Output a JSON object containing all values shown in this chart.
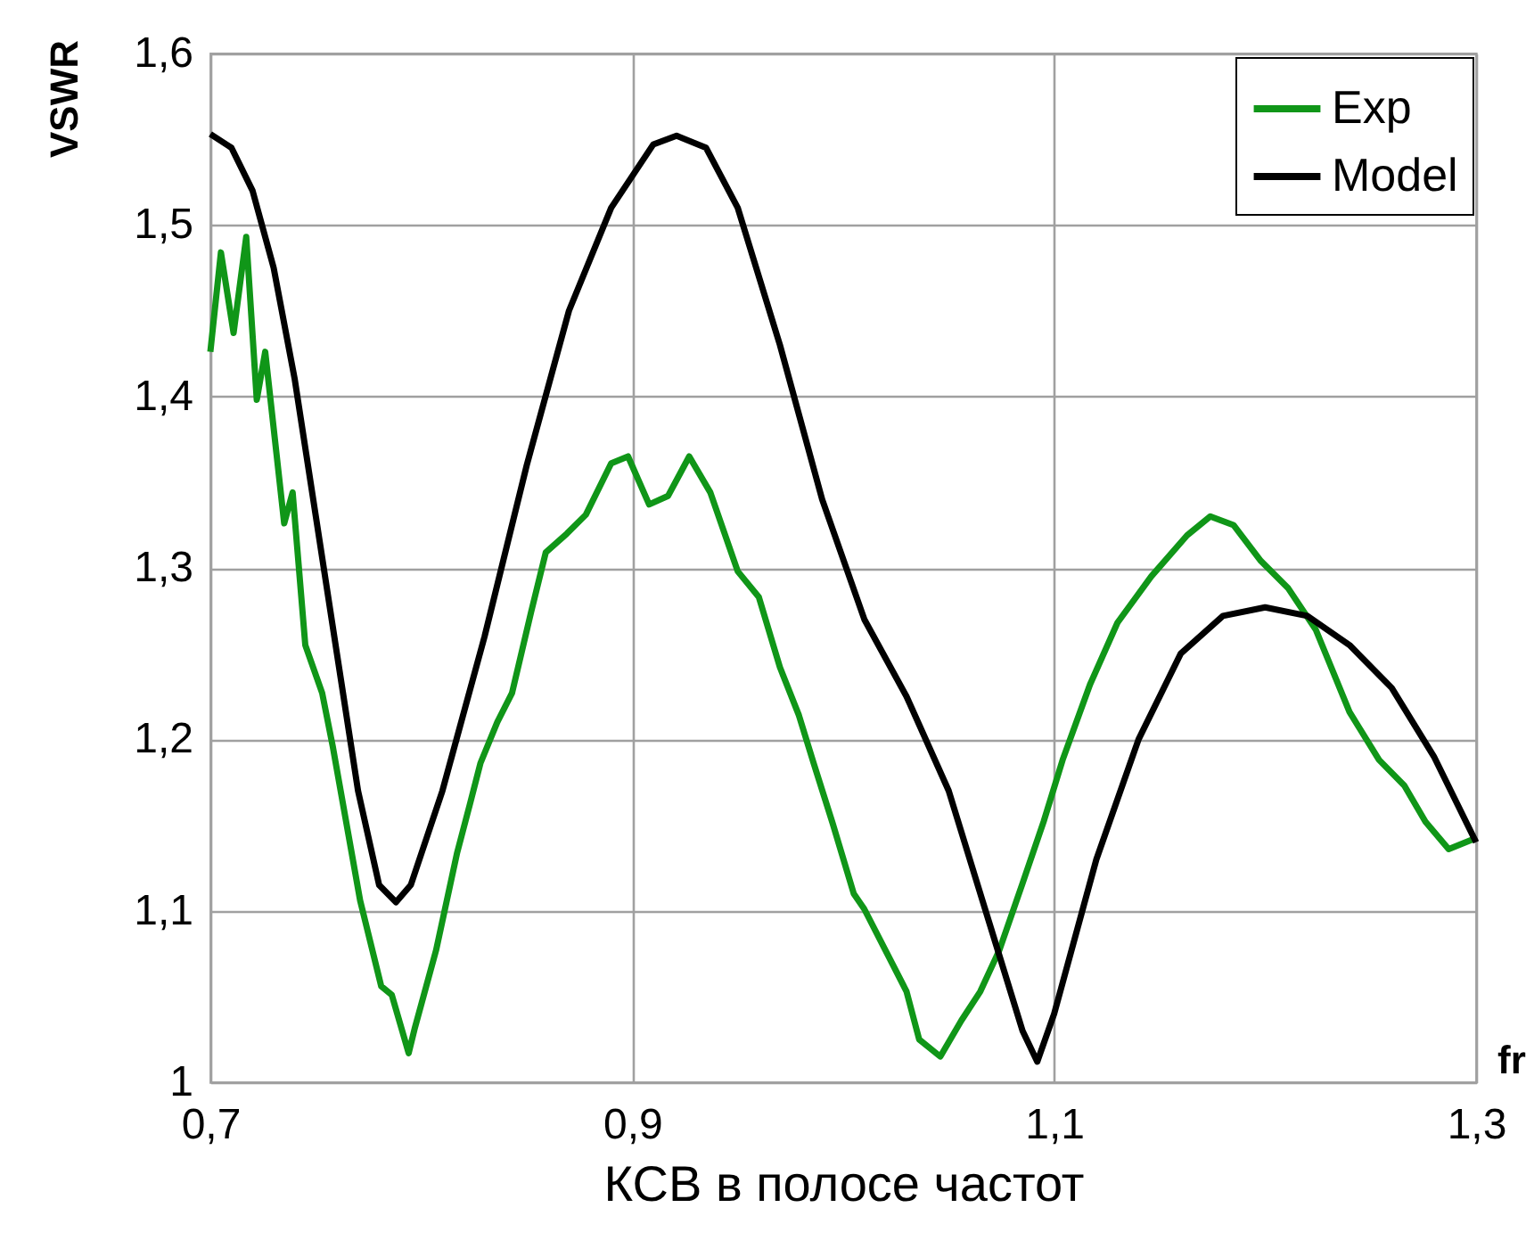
{
  "chart_data": {
    "type": "line",
    "xlabel": "КСВ в полосе частот",
    "ylabel": "VSWR",
    "annotations": [
      "fr"
    ],
    "xlim": [
      0.7,
      1.3
    ],
    "xticks": [
      {
        "value": 0.7,
        "label": "0,7"
      },
      {
        "value": 0.9,
        "label": "0,9"
      },
      {
        "value": 1.1,
        "label": "1,1"
      },
      {
        "value": 1.3,
        "label": "1,3"
      }
    ],
    "ylim": [
      1,
      1.6
    ],
    "yticks": [
      1,
      {
        "value": 1.1,
        "label": "1,1"
      },
      {
        "value": 1.2,
        "label": "1,2"
      },
      {
        "value": 1.3,
        "label": "1,3"
      },
      {
        "value": 1.4,
        "label": "1,4"
      },
      {
        "value": 1.5,
        "label": "1,5"
      },
      {
        "value": 1.6,
        "label": "1,6"
      }
    ],
    "grid": true,
    "legend": "top right",
    "marker": "none",
    "line_style": "solid",
    "series": [
      {
        "name": "Exp",
        "color": "#109618",
        "x": [
          0.7,
          0.705,
          0.711,
          0.717,
          0.722,
          0.726,
          0.735,
          0.739,
          0.745,
          0.753,
          0.758,
          0.771,
          0.781,
          0.786,
          0.794,
          0.797,
          0.807,
          0.817,
          0.823,
          0.828,
          0.836,
          0.843,
          0.852,
          0.859,
          0.869,
          0.878,
          0.89,
          0.898,
          0.908,
          0.917,
          0.927,
          0.937,
          0.95,
          0.96,
          0.97,
          0.979,
          0.986,
          0.995,
          1.005,
          1.01,
          1.02,
          1.03,
          1.036,
          1.046,
          1.056,
          1.065,
          1.074,
          1.085,
          1.095,
          1.104,
          1.117,
          1.13,
          1.146,
          1.163,
          1.174,
          1.185,
          1.198,
          1.211,
          1.224,
          1.24,
          1.254,
          1.266,
          1.276,
          1.287,
          1.299
        ],
        "values": [
          1.426,
          1.484,
          1.437,
          1.493,
          1.398,
          1.426,
          1.326,
          1.344,
          1.255,
          1.227,
          1.196,
          1.106,
          1.056,
          1.051,
          1.017,
          1.032,
          1.077,
          1.134,
          1.162,
          1.186,
          1.21,
          1.227,
          1.274,
          1.309,
          1.32,
          1.331,
          1.361,
          1.365,
          1.337,
          1.342,
          1.365,
          1.344,
          1.298,
          1.283,
          1.242,
          1.214,
          1.186,
          1.151,
          1.11,
          1.101,
          1.077,
          1.053,
          1.025,
          1.015,
          1.036,
          1.053,
          1.077,
          1.116,
          1.152,
          1.188,
          1.232,
          1.268,
          1.295,
          1.319,
          1.33,
          1.325,
          1.304,
          1.288,
          1.264,
          1.216,
          1.188,
          1.173,
          1.152,
          1.136,
          1.142
        ]
      },
      {
        "name": "Model",
        "color": "#000000",
        "x": [
          0.7,
          0.71,
          0.72,
          0.73,
          0.74,
          0.75,
          0.76,
          0.77,
          0.78,
          0.788,
          0.795,
          0.81,
          0.83,
          0.85,
          0.87,
          0.89,
          0.91,
          0.921,
          0.935,
          0.95,
          0.97,
          0.99,
          1.01,
          1.03,
          1.05,
          1.07,
          1.085,
          1.092,
          1.1,
          1.12,
          1.14,
          1.16,
          1.18,
          1.2,
          1.22,
          1.24,
          1.26,
          1.28,
          1.3
        ],
        "values": [
          1.553,
          1.545,
          1.52,
          1.475,
          1.41,
          1.33,
          1.25,
          1.17,
          1.115,
          1.105,
          1.115,
          1.17,
          1.26,
          1.36,
          1.45,
          1.51,
          1.547,
          1.552,
          1.545,
          1.51,
          1.43,
          1.34,
          1.27,
          1.225,
          1.17,
          1.09,
          1.03,
          1.012,
          1.04,
          1.13,
          1.2,
          1.25,
          1.272,
          1.277,
          1.272,
          1.255,
          1.23,
          1.19,
          1.14
        ]
      }
    ]
  }
}
